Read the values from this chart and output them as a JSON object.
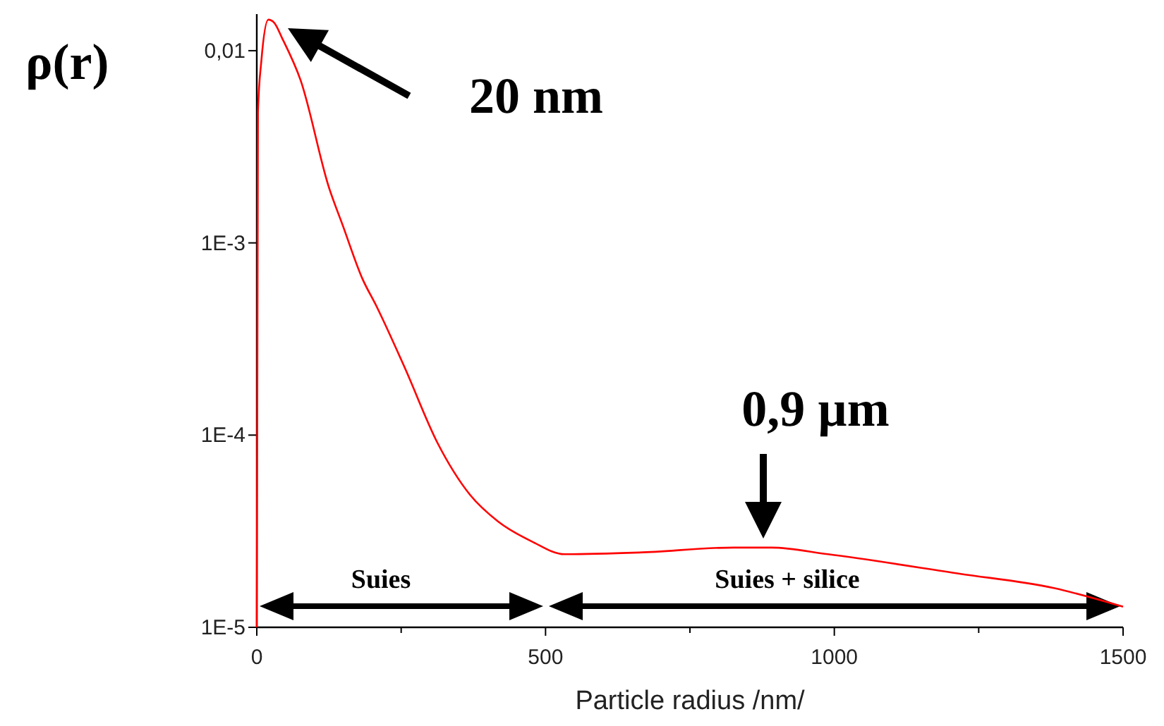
{
  "chart_data": {
    "type": "line",
    "ylabel": "ρ(r)",
    "xlabel": "Particle radius /nm/",
    "log": "y",
    "x": [
      0,
      2,
      8,
      20,
      30,
      44,
      76,
      125,
      149,
      183,
      207,
      256,
      313,
      369,
      418,
      476,
      533,
      662,
      826,
      891,
      989,
      1217,
      1380,
      1500
    ],
    "series": [
      {
        "color": "#ff0000",
        "values": [
          1e-05,
          0.0048,
          0.0089,
          0.0145,
          0.014,
          0.0116,
          0.007,
          0.00194,
          0.00123,
          0.00065,
          0.00047,
          0.000225,
          9.1e-05,
          4.9e-05,
          3.55e-05,
          2.8e-05,
          2.4e-05,
          2.45e-05,
          2.6e-05,
          2.6e-05,
          2.4e-05,
          1.9e-05,
          1.6e-05,
          1.28e-05
        ]
      }
    ],
    "xlim": [
      0,
      1500
    ],
    "ylim": [
      1e-05,
      0.0155
    ],
    "xticks": [
      0,
      {
        "value": 250,
        "label": null
      },
      500,
      {
        "value": 750,
        "label": null
      },
      1000,
      {
        "value": 1250,
        "label": null
      },
      1500
    ],
    "yticks": [
      {
        "value": 1e-05,
        "label": "1E-5"
      },
      {
        "value": 0.0001,
        "label": "1E-4"
      },
      {
        "value": 0.001,
        "label": "1E-3"
      },
      {
        "value": 0.01,
        "label": "0,01"
      }
    ],
    "grid": false,
    "marker": "none",
    "line_style": "solid",
    "annotations": [
      "20 nm",
      "0,9 µm",
      "Suies",
      "Suies + silice"
    ]
  }
}
